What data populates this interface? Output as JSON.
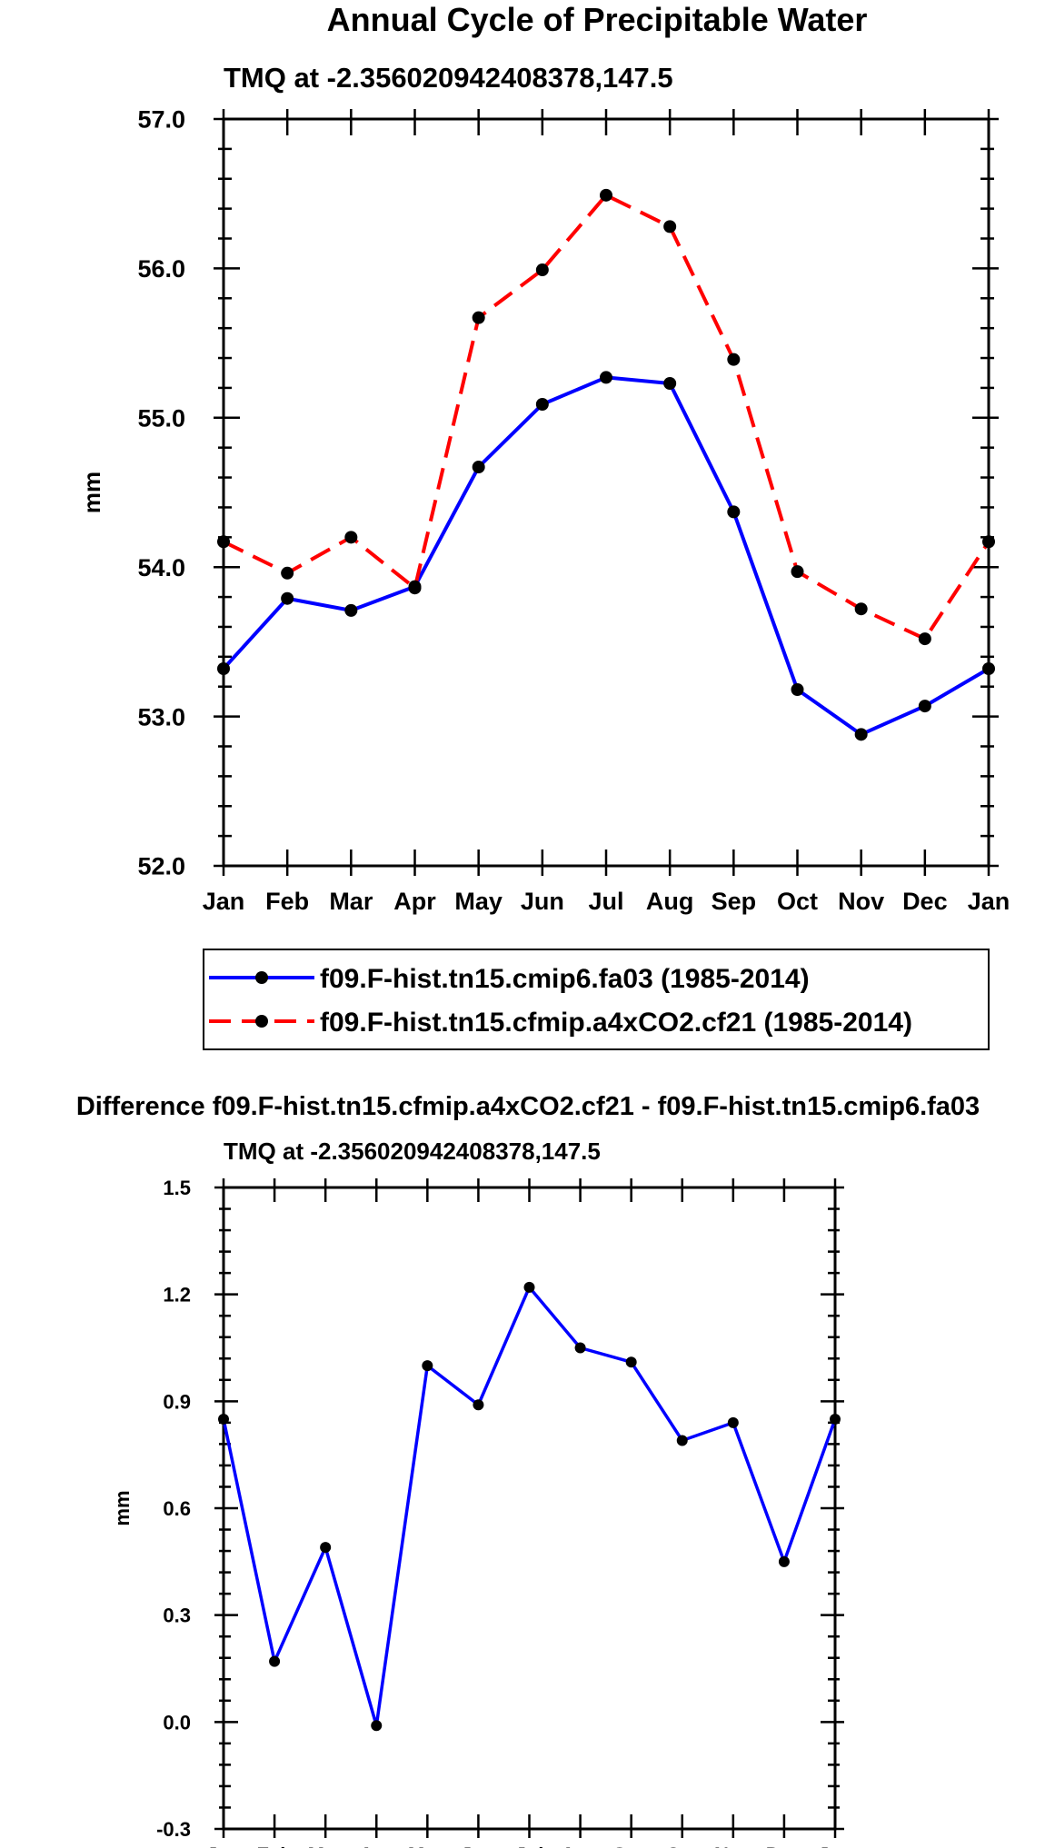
{
  "figure": {
    "title": "Annual Cycle of Precipitable Water",
    "diff_title": "Difference f09.F-hist.tn15.cfmip.a4xCO2.cf21 - f09.F-hist.tn15.cmip6.fa03"
  },
  "colors": {
    "case1": "#0000ff",
    "case2": "#ff0000",
    "marker": "#000000",
    "axis": "#000000"
  },
  "chart_data": [
    {
      "type": "line",
      "title": "TMQ at -2.356020942408378,147.5",
      "xlabel": "",
      "ylabel": "mm",
      "categories": [
        "Jan",
        "Feb",
        "Mar",
        "Apr",
        "May",
        "Jun",
        "Jul",
        "Aug",
        "Sep",
        "Oct",
        "Nov",
        "Dec",
        "Jan"
      ],
      "ylim": [
        52.0,
        57.0
      ],
      "yticks": [
        52.0,
        53.0,
        54.0,
        55.0,
        56.0,
        57.0
      ],
      "ytick_labels": [
        "52.0",
        "53.0",
        "54.0",
        "55.0",
        "56.0",
        "57.0"
      ],
      "legend_position": "below",
      "series": [
        {
          "name": "f09.F-hist.tn15.cmip6.fa03 (1985-2014)",
          "style": "solid",
          "values": [
            53.32,
            53.79,
            53.71,
            53.87,
            54.67,
            55.09,
            55.27,
            55.23,
            54.37,
            53.18,
            52.88,
            53.07,
            53.32
          ]
        },
        {
          "name": "f09.F-hist.tn15.cfmip.a4xCO2.cf21 (1985-2014)",
          "style": "dashed",
          "values": [
            54.17,
            53.96,
            54.2,
            53.86,
            55.67,
            55.99,
            56.49,
            56.28,
            55.39,
            53.97,
            53.72,
            53.52,
            54.17
          ]
        }
      ]
    },
    {
      "type": "line",
      "title": "TMQ at -2.356020942408378,147.5",
      "xlabel": "",
      "ylabel": "mm",
      "categories": [
        "Jan",
        "Feb",
        "Mar",
        "Apr",
        "May",
        "Jun",
        "Jul",
        "Aug",
        "Sep",
        "Oct",
        "Nov",
        "Dec",
        "Jan"
      ],
      "ylim": [
        -0.3,
        1.5
      ],
      "yticks": [
        -0.3,
        0.0,
        0.3,
        0.6,
        0.9,
        1.2,
        1.5
      ],
      "ytick_labels": [
        "-0.3",
        "0.0",
        "0.3",
        "0.6",
        "0.9",
        "1.2",
        "1.5"
      ],
      "series": [
        {
          "name": "Difference",
          "style": "solid",
          "values": [
            0.85,
            0.17,
            0.49,
            -0.01,
            1.0,
            0.89,
            1.22,
            1.05,
            1.01,
            0.79,
            0.84,
            0.45,
            0.85
          ]
        }
      ]
    }
  ]
}
